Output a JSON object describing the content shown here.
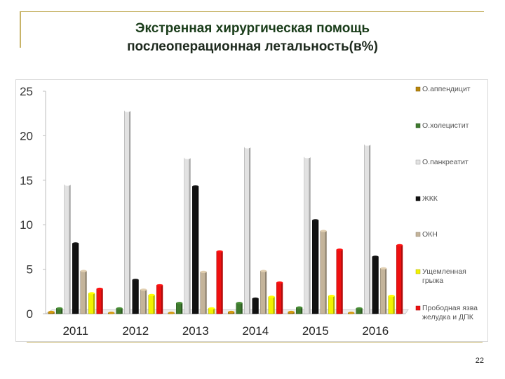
{
  "slide": {
    "title_line1": "Экстренная хирургическая помощь",
    "title_line2": "послеоперационная летальность(в%)",
    "page_number": "22"
  },
  "chart_data": {
    "type": "bar",
    "title": "",
    "xlabel": "",
    "ylabel": "",
    "categories": [
      "2011",
      "2012",
      "2013",
      "2014",
      "2015",
      "2016"
    ],
    "ylim": [
      0,
      25
    ],
    "yticks": [
      0,
      5,
      10,
      15,
      20,
      25
    ],
    "grid": false,
    "legend_position": "right",
    "series": [
      {
        "name": "О.аппендицит",
        "color": "#b8860b",
        "values": [
          0.2,
          0.1,
          0.1,
          0.2,
          0.2,
          0.1
        ]
      },
      {
        "name": "О.холецистит",
        "color": "#3e7a2e",
        "values": [
          0.6,
          0.6,
          1.2,
          1.2,
          0.7,
          0.6
        ]
      },
      {
        "name": "О.панкреатит",
        "color": "#e2e2e2",
        "values": [
          14.5,
          22.8,
          17.5,
          18.7,
          17.6,
          19.0
        ]
      },
      {
        "name": "ЖКК",
        "color": "#111111",
        "values": [
          7.9,
          3.8,
          14.3,
          1.7,
          10.5,
          6.4
        ]
      },
      {
        "name": "ОКН",
        "color": "#c4b49a",
        "values": [
          4.8,
          2.7,
          4.7,
          4.8,
          9.3,
          5.1
        ]
      },
      {
        "name": "Ущемленная грыжа",
        "color": "#f2f200",
        "values": [
          2.3,
          2.1,
          0.6,
          1.9,
          2.0,
          2.0
        ]
      },
      {
        "name": "Прободная язва желудка и ДПК",
        "color": "#ee1010",
        "values": [
          2.8,
          3.2,
          7.0,
          3.5,
          7.2,
          7.7
        ]
      }
    ]
  }
}
